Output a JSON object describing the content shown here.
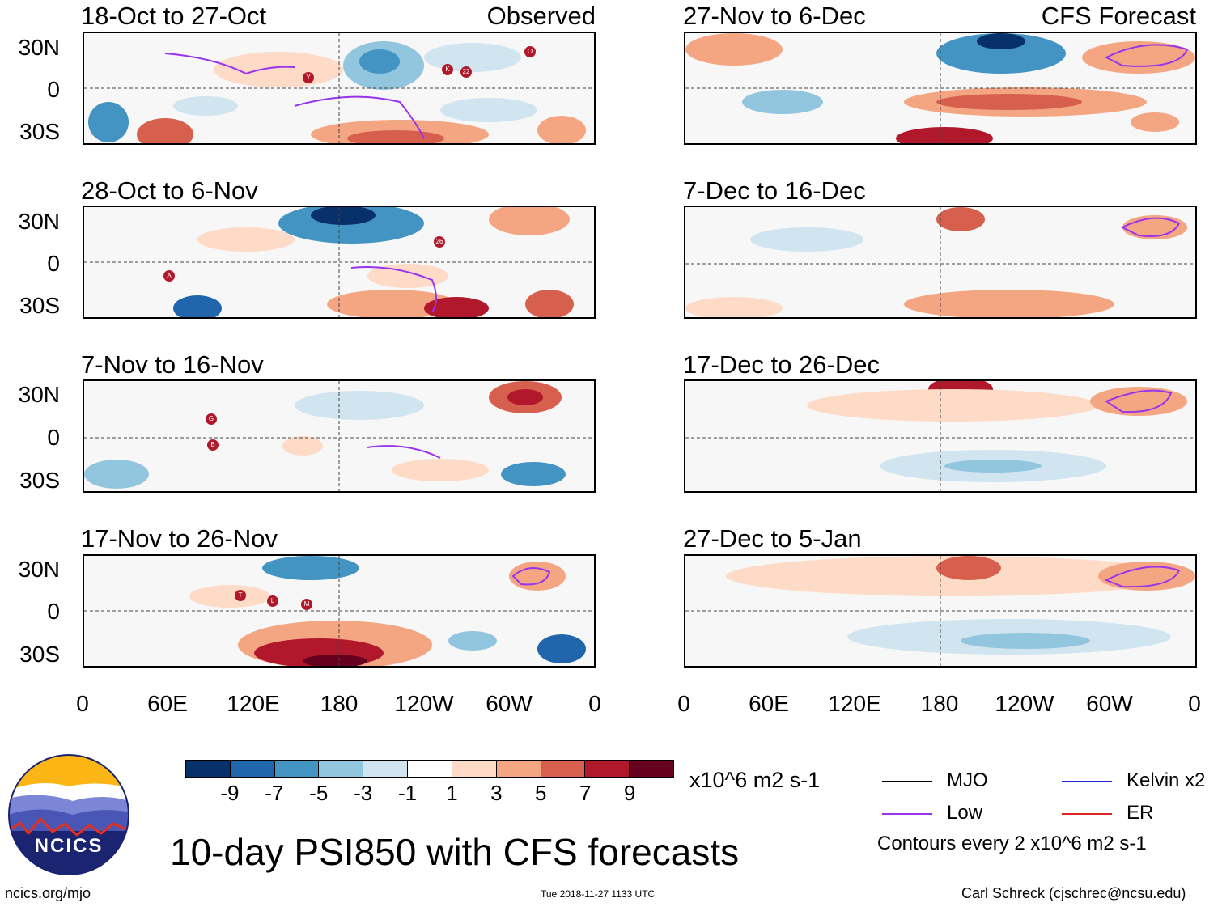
{
  "panels_observed": [
    {
      "title": "18-Oct to 27-Oct",
      "label": "Observed"
    },
    {
      "title": "28-Oct to 6-Nov",
      "label": ""
    },
    {
      "title": "7-Nov to 16-Nov",
      "label": ""
    },
    {
      "title": "17-Nov to 26-Nov",
      "label": ""
    }
  ],
  "panels_forecast": [
    {
      "title": "27-Nov to 6-Dec",
      "label": "CFS Forecast"
    },
    {
      "title": "7-Dec to 16-Dec",
      "label": ""
    },
    {
      "title": "17-Dec to 26-Dec",
      "label": ""
    },
    {
      "title": "27-Dec to 5-Jan",
      "label": ""
    }
  ],
  "lat_labels": [
    "30N",
    "0",
    "30S"
  ],
  "lon_labels": [
    "0",
    "60E",
    "120E",
    "180",
    "120W",
    "60W",
    "0"
  ],
  "storm_markers": [
    [
      "Y",
      "K",
      "22",
      "O"
    ],
    [
      "26",
      "A"
    ],
    [
      "G",
      "B"
    ],
    [
      "T",
      "L",
      "M"
    ]
  ],
  "colorbar": {
    "colors": [
      "#08306b",
      "#2166ac",
      "#4393c3",
      "#92c5de",
      "#d1e5f0",
      "#ffffff",
      "#fddbc7",
      "#f4a582",
      "#d6604d",
      "#b2182b",
      "#67001f"
    ],
    "ticks": [
      "-9",
      "-7",
      "-5",
      "-3",
      "-1",
      "1",
      "3",
      "5",
      "7",
      "9"
    ],
    "units": "x10^6 m2 s-1"
  },
  "legend": {
    "mjo": "MJO",
    "kelvin": "Kelvin x2",
    "low": "Low",
    "er": "ER",
    "contours_note": "Contours every 2 x10^6 m2 s-1",
    "colors": {
      "mjo": "#000000",
      "kelvin": "#2222cc",
      "low": "#9933ee",
      "er": "#dd2222"
    }
  },
  "main_title": "10-day PSI850 with CFS forecasts",
  "logo_text": "NCICS",
  "url": "ncics.org/mjo",
  "timestamp": "Tue 2018-11-27 1133 UTC",
  "credit": "Carl Schreck (cjschrec@ncsu.edu)"
}
